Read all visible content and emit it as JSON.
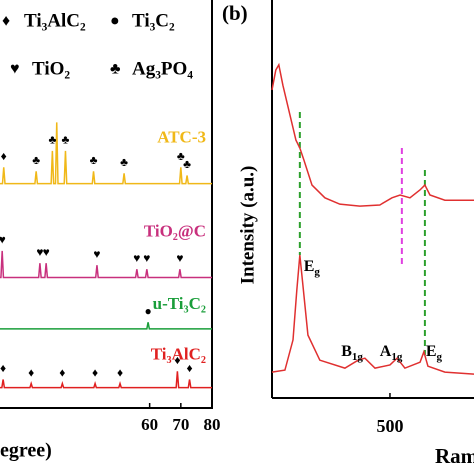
{
  "chart_data": [
    {
      "type": "line",
      "x_label": "egree)",
      "xlim": [
        12,
        80
      ],
      "xticks": [
        60,
        70,
        80
      ],
      "ylim": [
        0,
        100
      ],
      "legend": [
        {
          "symbol": "♦",
          "label": "Ti₃AlC₂"
        },
        {
          "symbol": "●",
          "label": "Ti₃C₂"
        },
        {
          "symbol": "♥",
          "label": "TiO₂"
        },
        {
          "symbol": "♣",
          "label": "Ag₃PO₄"
        }
      ],
      "series": [
        {
          "name": "ATC-3",
          "color": "#f0b818",
          "x": [
            12,
            12.8,
            13.2,
            13.6,
            23.2,
            23.6,
            24,
            28.4,
            28.8,
            29.2,
            29.8,
            30.2,
            30.6,
            32.6,
            33,
            33.4,
            41.6,
            42,
            42.4,
            51.4,
            51.8,
            52.2,
            69.6,
            70,
            70.4,
            71.6,
            72,
            72.4,
            80
          ],
          "values": [
            55,
            55,
            59,
            55,
            55,
            58,
            55,
            55,
            63,
            55,
            55,
            70,
            55,
            55,
            63,
            55,
            55,
            58,
            55,
            55,
            57.5,
            55,
            55,
            59,
            55,
            55,
            57,
            55,
            55
          ],
          "markers": [
            {
              "symbol": "♦",
              "x": [
                13.2
              ]
            },
            {
              "symbol": "♣",
              "x": [
                23.6,
                28.8,
                33,
                42,
                51.8,
                70,
                72
              ]
            }
          ]
        },
        {
          "name": "TiO₂@C",
          "color": "#c8307d",
          "x": [
            12,
            12.3,
            12.7,
            13.1,
            24.4,
            24.8,
            25.2,
            26.4,
            26.8,
            27.2,
            42.7,
            43.1,
            43.5,
            55.5,
            55.9,
            56.3,
            58.7,
            59.1,
            59.5,
            69.3,
            69.7,
            70.1,
            80
          ],
          "values": [
            32,
            32,
            38.5,
            32,
            32,
            35.5,
            32,
            32,
            35.5,
            32,
            32,
            35,
            32,
            32,
            34,
            32,
            32,
            34,
            32,
            32,
            34,
            32,
            32
          ],
          "markers": [
            {
              "symbol": "♥",
              "x": [
                12.7,
                24.8,
                26.8,
                43.1,
                55.9,
                59.1,
                69.7
              ]
            }
          ]
        },
        {
          "name": "u-Ti₃C₂",
          "color": "#1a9e3a",
          "x": [
            12,
            59.1,
            59.5,
            59.9,
            80
          ],
          "values": [
            19.4,
            19.4,
            21,
            19.4,
            19.4
          ],
          "markers": [
            {
              "symbol": "●",
              "x": [
                59.5
              ]
            }
          ]
        },
        {
          "name": "Ti₃AlC₂",
          "color": "#e02020",
          "x": [
            12,
            12.6,
            13,
            13.4,
            21.6,
            22,
            22.4,
            31.6,
            32,
            32.4,
            42.1,
            42.5,
            42.9,
            50.1,
            50.5,
            50.9,
            68.5,
            68.9,
            69.3,
            72.4,
            72.8,
            73.2,
            80
          ],
          "values": [
            5,
            5,
            7,
            5,
            5,
            6,
            5,
            5,
            6,
            5,
            5,
            6,
            5,
            5,
            6,
            5,
            5,
            9,
            5,
            5,
            7,
            5,
            5
          ],
          "markers": [
            {
              "symbol": "♦",
              "x": [
                13,
                22,
                32,
                42.5,
                50.5,
                68.9,
                72.8
              ]
            }
          ]
        }
      ]
    },
    {
      "type": "line",
      "panel_label": "(b)",
      "y_label": "Intensity (a.u.)",
      "x_label": "Ram",
      "xlim": [
        34,
        832
      ],
      "xticks": [
        500
      ],
      "ylim": [
        0,
        100
      ],
      "series": [
        {
          "color": "#e03030",
          "x": [
            34,
            49,
            61,
            77,
            105,
            128.5,
            144,
            160,
            192,
            243,
            302,
            381,
            460,
            508,
            540,
            579,
            619,
            638,
            658,
            717,
            832
          ],
          "values": [
            77.4,
            82.4,
            83.7,
            78.6,
            71.1,
            64.8,
            62.8,
            59.8,
            53.5,
            50.3,
            48.7,
            48.2,
            48.5,
            50.3,
            51,
            50.3,
            52.3,
            53.5,
            51,
            49.7,
            49.7
          ]
        },
        {
          "color": "#e03030",
          "x": [
            34,
            85,
            117,
            132,
            144,
            156,
            176,
            223,
            322,
            374,
            401,
            441,
            500,
            528,
            559,
            619,
            634,
            650,
            717,
            832
          ],
          "values": [
            6.5,
            7,
            14.6,
            27.1,
            35.9,
            28.4,
            15.8,
            9.5,
            7.5,
            9.5,
            10,
            7.5,
            8.3,
            10,
            7.5,
            9,
            11.6,
            8,
            6.5,
            6
          ]
        }
      ],
      "peak_labels": [
        {
          "x": 144,
          "base": "E",
          "sub": "g"
        },
        {
          "x": 374,
          "base": "B",
          "sub": "1g"
        },
        {
          "x": 528,
          "base": "A",
          "sub": "1g"
        },
        {
          "x": 650,
          "base": "E",
          "sub": "g"
        }
      ],
      "reference_lines": [
        {
          "x": 144,
          "color": "#2ca02c"
        },
        {
          "x": 547,
          "color": "#e040e0"
        },
        {
          "x": 638,
          "color": "#2ca02c"
        }
      ]
    }
  ]
}
